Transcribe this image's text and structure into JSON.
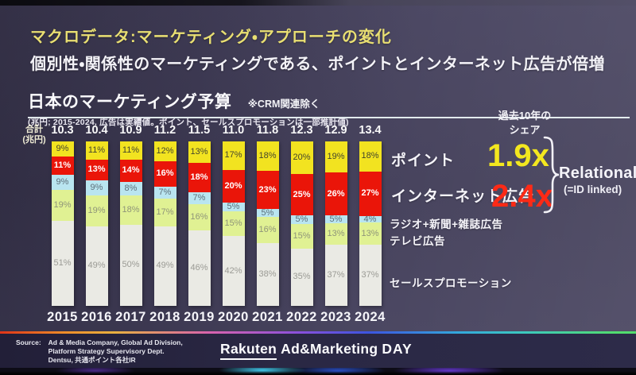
{
  "header": {
    "title": "マクロデータ:マーケティング・アプローチの変化",
    "subtitle": "個別性・関係性のマーケティングである、ポイントとインターネット広告が倍増"
  },
  "chart_data": {
    "type": "bar",
    "stacked": true,
    "unit": "%",
    "title": "日本のマーケティング予算",
    "title_note": "※CRM関連除く",
    "footnote": "(兆円; 2015-2024, 広告は実績値。ポイント、セールスプロモーションは一部推計値)",
    "total_axis_label_line1": "合計",
    "total_axis_label_line2": "(兆円)",
    "categories": [
      "2015",
      "2016",
      "2017",
      "2018",
      "2019",
      "2020",
      "2021",
      "2022",
      "2023",
      "2024"
    ],
    "totals": [
      "10.3",
      "10.4",
      "10.9",
      "11.2",
      "11.5",
      "11.0",
      "11.8",
      "12.3",
      "12.9",
      "13.4"
    ],
    "series": [
      {
        "name": "ポイント",
        "color": "#f2e320",
        "label_color": "#44452c",
        "label_bold": false,
        "values": [
          9,
          11,
          11,
          12,
          13,
          17,
          18,
          20,
          19,
          18
        ]
      },
      {
        "name": "インターネット広告",
        "color": "#ea1509",
        "label_color": "#ffffff",
        "label_bold": true,
        "values": [
          11,
          13,
          14,
          16,
          18,
          20,
          23,
          25,
          26,
          27
        ]
      },
      {
        "name": "ラジオ+新聞+雑誌広告",
        "color": "#b9e5f0",
        "label_color": "#5d6f7a",
        "label_bold": false,
        "values": [
          9,
          9,
          8,
          7,
          7,
          5,
          5,
          5,
          5,
          4
        ]
      },
      {
        "name": "テレビ広告",
        "color": "#e0f193",
        "label_color": "#8f9579",
        "label_bold": false,
        "values": [
          19,
          19,
          18,
          17,
          16,
          15,
          16,
          15,
          13,
          13
        ]
      },
      {
        "name": "セールスプロモーション",
        "color": "#eaeae4",
        "label_color": "#9b9b95",
        "label_bold": false,
        "values": [
          51,
          49,
          50,
          49,
          46,
          42,
          38,
          35,
          37,
          37
        ]
      }
    ],
    "legend_position": "right"
  },
  "annotations": {
    "share_title_line1": "過去10年の",
    "share_title_line2": "シェア",
    "point_multiplier": "1.9x",
    "internet_multiplier": "2.4x",
    "relational": "Relational",
    "relational_sub": "(=ID linked)",
    "point_multiplier_color": "#f3e71f",
    "internet_multiplier_color": "#fd2a16"
  },
  "footer": {
    "source_label": "Source:",
    "source_lines": [
      "Ad & Media Company, Global Ad Division,",
      "Platform Strategy Supervisory Dept.",
      "Dentsu, 共通ポイント各社IR"
    ],
    "logo": {
      "brand": "Rakuten",
      "event": "Ad&Marketing",
      "day": "DAY"
    }
  }
}
